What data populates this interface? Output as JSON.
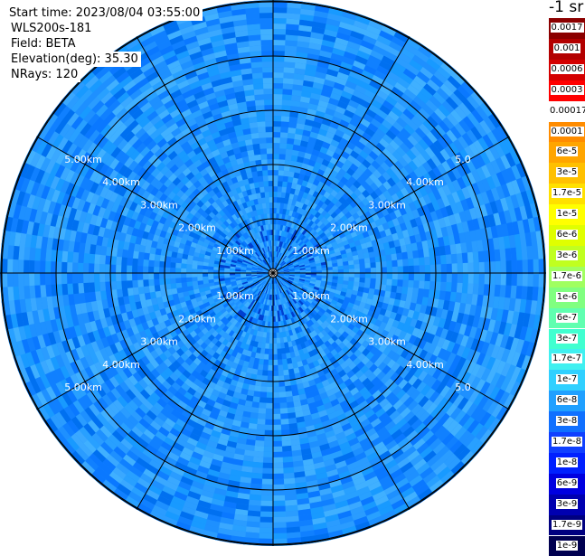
{
  "info": {
    "start_time": "Start time: 2023/08/04 03:55:00",
    "instrument": "WLS200s-181",
    "field": "Field: BETA",
    "elevation": "Elevation(deg): 35.30",
    "nrays": "NRays: 120"
  },
  "unit_label": "-1 sr",
  "colorbar": {
    "labels": [
      "0.0017",
      "0.001",
      "0.0006",
      "0.0003",
      "0.00017",
      "0.0001",
      "6e-5",
      "3e-5",
      "1.7e-5",
      "1e-5",
      "6e-6",
      "3e-6",
      "1.7e-6",
      "1e-6",
      "6e-7",
      "3e-7",
      "1.7e-7",
      "1e-7",
      "6e-8",
      "3e-8",
      "1.7e-8",
      "1e-8",
      "6e-9",
      "3e-9",
      "1.7e-9",
      "1e-9"
    ],
    "colors": [
      "#8b0000",
      "#b30000",
      "#d40000",
      "#ff0000",
      "#ffffff",
      "#ff8c00",
      "#ffa500",
      "#ffc000",
      "#ffe000",
      "#ffff00",
      "#e0ff00",
      "#c0ff20",
      "#a0ff60",
      "#80ff80",
      "#60ffb0",
      "#40ffd0",
      "#40f0f0",
      "#30d0ff",
      "#20a0ff",
      "#1070ff",
      "#1040ff",
      "#0020ff",
      "#0000e0",
      "#0000b0",
      "#000080",
      "#000050"
    ]
  },
  "chart_data": {
    "type": "heatmap",
    "projection": "polar-ppi",
    "field": "BETA",
    "elevation_deg": 35.3,
    "nrays": 120,
    "range_rings_km": [
      1,
      2,
      3,
      4,
      5
    ],
    "max_range_km": 5.0,
    "spoke_interval_deg": 30,
    "ring_labels": {
      "upper_left": [
        "1.00km",
        "2.00km",
        "3.00km",
        "4.00km",
        "5.00km"
      ],
      "upper_right": [
        "1.00km",
        "2.00km",
        "3.00km",
        "4.00km",
        "5.0"
      ],
      "lower_left": [
        "1.00km",
        "2.00km",
        "3.00km",
        "4.00km",
        "5.00km"
      ],
      "lower_right": [
        "1.00km",
        "2.00km",
        "3.00km",
        "4.00km",
        "5.0"
      ]
    },
    "value_scale": "log",
    "value_range": [
      1e-09,
      0.0017
    ],
    "dominant_value_range": [
      3e-08,
      1.7e-07
    ],
    "grid": true,
    "legend": "right"
  }
}
